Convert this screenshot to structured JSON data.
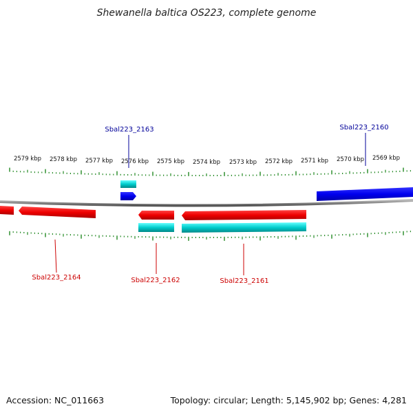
{
  "title": "Shewanella baltica OS223, complete genome",
  "footer": {
    "accession": "Accession: NC_011663",
    "summary": "Topology: circular; Length: 5,145,902 bp; Genes: 4,281"
  },
  "scale_labels": [
    "2579 kbp",
    "2578 kbp",
    "2577 kbp",
    "2576 kbp",
    "2575 kbp",
    "2574 kbp",
    "2573 kbp",
    "2572 kbp",
    "2571 kbp",
    "2570 kbp",
    "2569 kbp"
  ],
  "gene_labels": {
    "g2160": "Sbal223_2160",
    "g2161": "Sbal223_2161",
    "g2162": "Sbal223_2162",
    "g2163": "Sbal223_2163",
    "g2164": "Sbal223_2164"
  },
  "colors": {
    "forward_cds": "#0000ee",
    "reverse_cds": "#ee0000",
    "rna_cyan": "#00cccc",
    "backbone": "#888888",
    "tick": "#228822",
    "forward_label": "#000099",
    "reverse_label": "#cc0000"
  }
}
